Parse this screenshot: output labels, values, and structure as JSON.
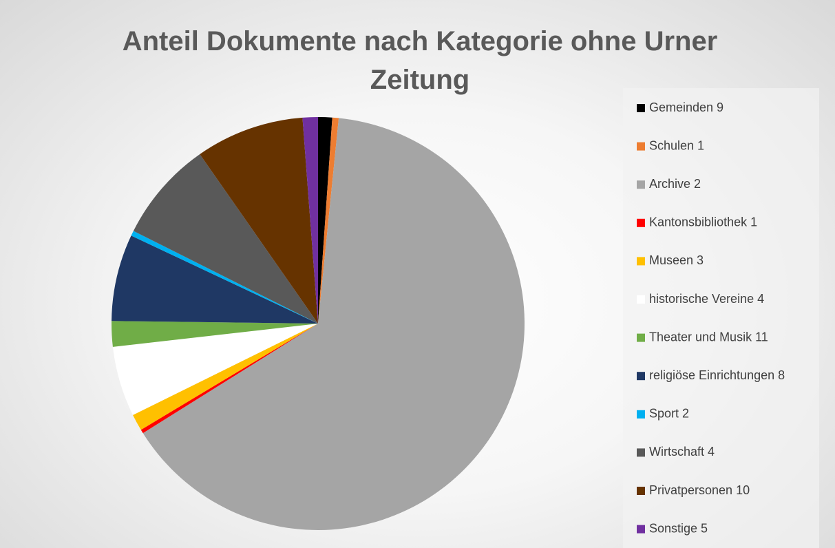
{
  "chart_data": {
    "type": "pie",
    "title": "Anteil Dokumente nach Kategorie ohne Urner Zeitung",
    "categories": [
      "Gemeinden 9",
      "Schulen 1",
      "Archive 2",
      "Kantonsbibliothek 1",
      "Museen 3",
      "historische Vereine 4",
      "Theater und Musik 11",
      "religiöse Einrichtungen 8",
      "Sport 2",
      "Wirtschaft 4",
      "Privatpersonen 10",
      "Sonstige 5"
    ],
    "values": [
      1.1,
      0.5,
      64.5,
      0.3,
      1.3,
      5.5,
      2.0,
      6.8,
      0.4,
      7.9,
      8.5,
      1.2
    ],
    "colors": [
      "#000000",
      "#ed7d31",
      "#a5a5a5",
      "#ff0000",
      "#ffc000",
      "#ffffff",
      "#70ad47",
      "#1f3864",
      "#00b0f0",
      "#595959",
      "#663300",
      "#7030a0"
    ],
    "legend": "right"
  }
}
